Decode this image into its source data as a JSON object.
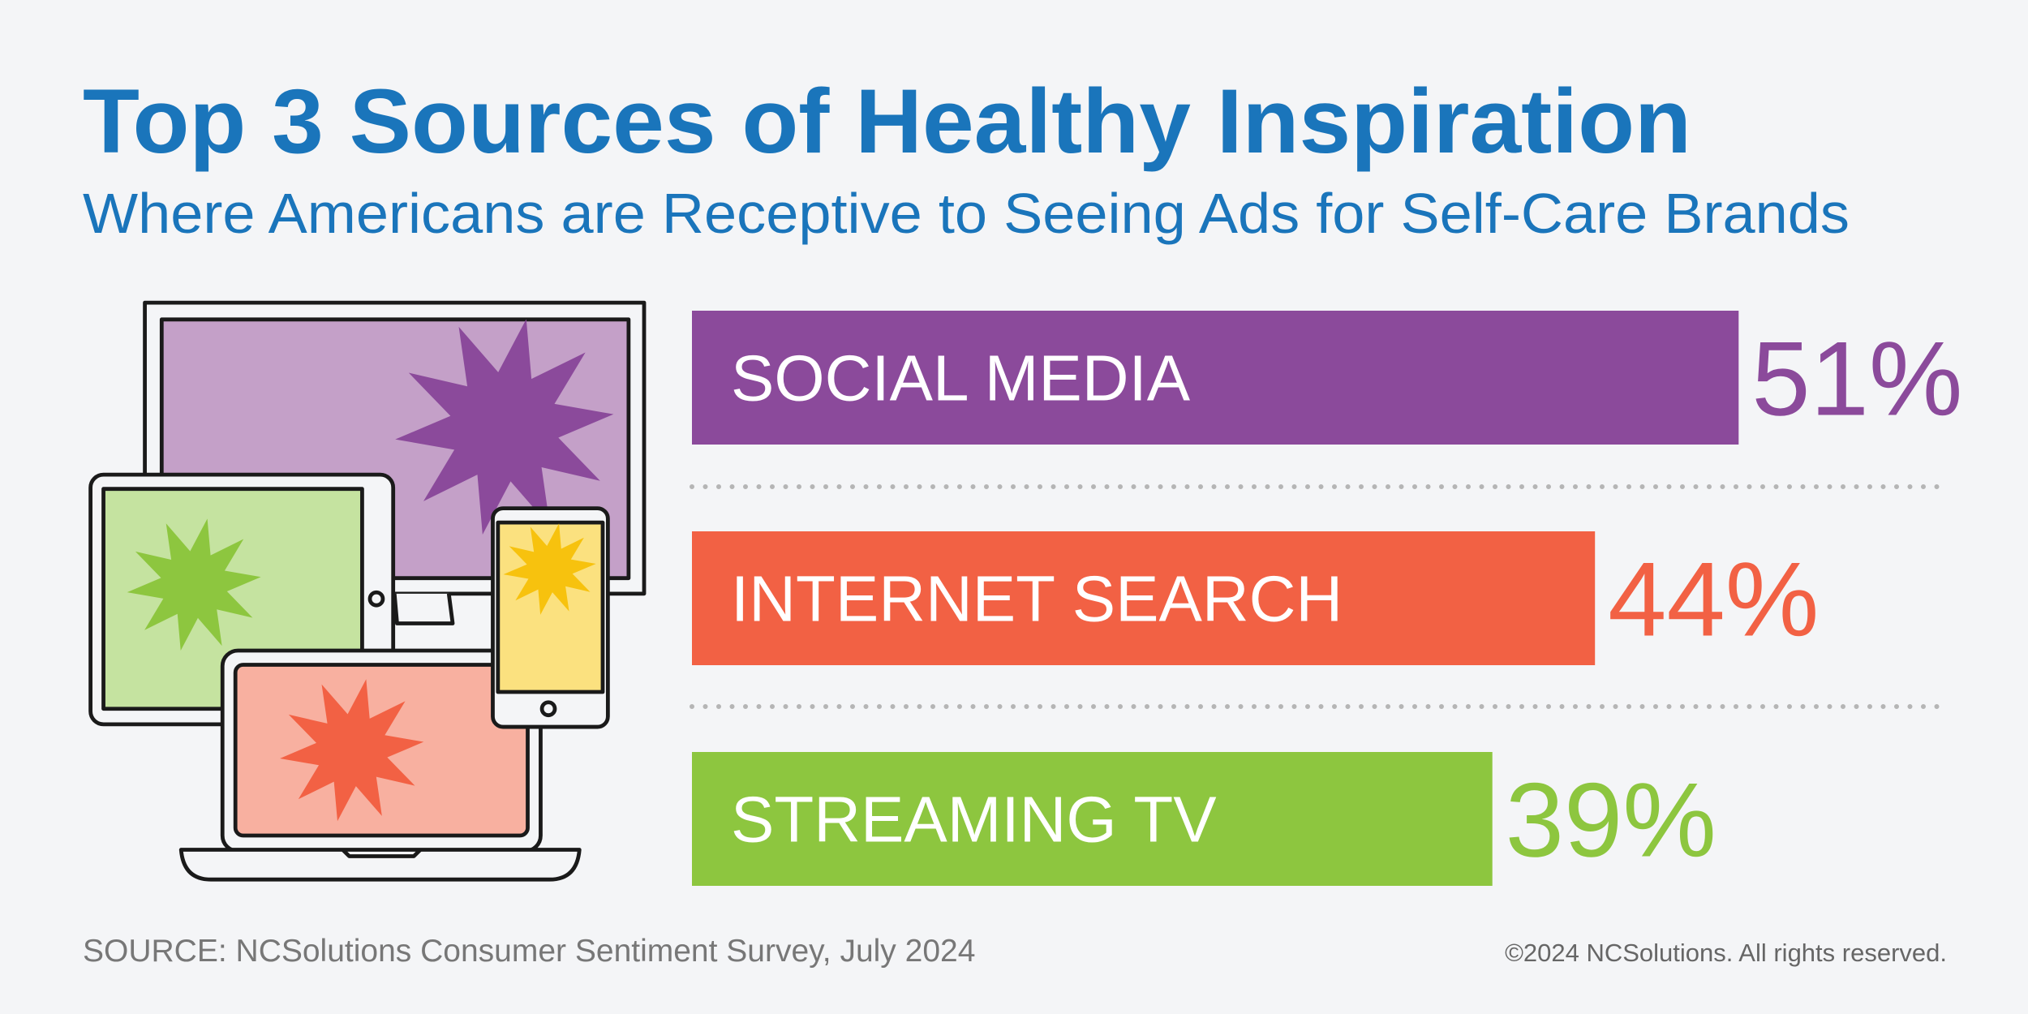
{
  "chart_data": {
    "type": "bar",
    "orientation": "horizontal",
    "title": "Top 3 Sources of Healthy Inspiration",
    "subtitle": "Where Americans are Receptive to Seeing Ads for Self-Care Brands",
    "categories": [
      "SOCIAL MEDIA",
      "INTERNET SEARCH",
      "STREAMING TV"
    ],
    "values": [
      51,
      44,
      39
    ],
    "value_labels": [
      "51%",
      "44%",
      "39%"
    ],
    "colors": [
      "#8b4a9b",
      "#f26144",
      "#8dc63f"
    ]
  },
  "footer": {
    "source": "SOURCE: NCSolutions Consumer Sentiment Survey, July 2024",
    "copyright": "©2024 NCSolutions. All rights reserved."
  }
}
